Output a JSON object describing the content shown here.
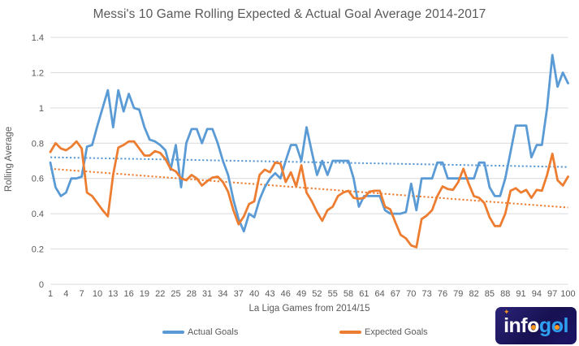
{
  "title": "Messi's 10 Game Rolling Expected & Actual Goal Average 2014-2017",
  "y_axis": {
    "label": "Rolling Average",
    "ticks": [
      "1.4",
      "1.2",
      "1",
      "0.8",
      "0.6",
      "0.4",
      "0.2",
      "0"
    ]
  },
  "x_axis": {
    "label": "La Liga Games from 2014/15",
    "ticks": [
      1,
      4,
      7,
      10,
      13,
      16,
      19,
      22,
      25,
      28,
      31,
      34,
      37,
      40,
      43,
      46,
      49,
      52,
      55,
      58,
      61,
      64,
      67,
      70,
      73,
      76,
      79,
      82,
      85,
      88,
      91,
      94,
      97,
      100
    ]
  },
  "legend": {
    "actual_label": "Actual Goals",
    "expected_label": "Expected Goals"
  },
  "colors": {
    "actual": "#5B9BD5",
    "expected": "#ED7D31",
    "gridline": "#D9D9D9",
    "text": "#595959",
    "logo_bg": "#171152",
    "logo_accent": "#F7941D",
    "logo_blue": "#2f9ff0"
  },
  "logo": {
    "inf": "inf",
    "o1": "o",
    "g": "g",
    "o2": "o",
    "l": "l",
    "sparkle": "✦"
  },
  "chart_data": {
    "type": "line",
    "title": "Messi's 10 Game Rolling Expected & Actual Goal Average 2014-2017",
    "xlabel": "La Liga Games from 2014/15",
    "ylabel": "Rolling Average",
    "x_range": [
      1,
      100
    ],
    "x_note": "x = La Liga game number 1..100; values arrays are indexed per game",
    "ylim": [
      0,
      1.4
    ],
    "grid": true,
    "legend_position": "bottom",
    "series": [
      {
        "name": "Actual Goals",
        "color": "#5B9BD5",
        "style": "solid",
        "values": [
          0.69,
          0.55,
          0.5,
          0.52,
          0.6,
          0.6,
          0.61,
          0.78,
          0.79,
          0.9,
          1.0,
          1.1,
          0.89,
          1.1,
          0.98,
          1.08,
          1.0,
          0.99,
          0.89,
          0.82,
          0.81,
          0.79,
          0.76,
          0.65,
          0.79,
          0.55,
          0.8,
          0.88,
          0.88,
          0.8,
          0.88,
          0.88,
          0.8,
          0.7,
          0.62,
          0.48,
          0.37,
          0.3,
          0.4,
          0.38,
          0.48,
          0.55,
          0.6,
          0.63,
          0.6,
          0.7,
          0.79,
          0.79,
          0.7,
          0.89,
          0.75,
          0.62,
          0.7,
          0.62,
          0.7,
          0.7,
          0.7,
          0.7,
          0.6,
          0.44,
          0.5,
          0.5,
          0.5,
          0.5,
          0.42,
          0.4,
          0.4,
          0.4,
          0.41,
          0.57,
          0.42,
          0.6,
          0.6,
          0.6,
          0.69,
          0.69,
          0.6,
          0.6,
          0.6,
          0.6,
          0.6,
          0.6,
          0.69,
          0.69,
          0.55,
          0.5,
          0.5,
          0.6,
          0.75,
          0.9,
          0.9,
          0.9,
          0.72,
          0.79,
          0.79,
          1.0,
          1.3,
          1.12,
          1.2,
          1.14
        ]
      },
      {
        "name": "Expected Goals",
        "color": "#ED7D31",
        "style": "solid",
        "values": [
          0.75,
          0.8,
          0.77,
          0.76,
          0.78,
          0.81,
          0.77,
          0.52,
          0.5,
          0.46,
          0.42,
          0.385,
          0.62,
          0.775,
          0.79,
          0.81,
          0.81,
          0.77,
          0.73,
          0.73,
          0.755,
          0.745,
          0.71,
          0.655,
          0.64,
          0.6,
          0.59,
          0.62,
          0.6,
          0.56,
          0.585,
          0.605,
          0.61,
          0.58,
          0.525,
          0.42,
          0.34,
          0.385,
          0.455,
          0.47,
          0.62,
          0.65,
          0.635,
          0.69,
          0.685,
          0.58,
          0.635,
          0.555,
          0.675,
          0.52,
          0.47,
          0.41,
          0.36,
          0.42,
          0.44,
          0.5,
          0.52,
          0.53,
          0.49,
          0.485,
          0.49,
          0.525,
          0.53,
          0.53,
          0.44,
          0.425,
          0.35,
          0.28,
          0.26,
          0.22,
          0.21,
          0.37,
          0.39,
          0.42,
          0.5,
          0.555,
          0.54,
          0.535,
          0.58,
          0.655,
          0.57,
          0.5,
          0.49,
          0.46,
          0.38,
          0.33,
          0.33,
          0.4,
          0.53,
          0.545,
          0.52,
          0.535,
          0.49,
          0.535,
          0.53,
          0.62,
          0.74,
          0.59,
          0.56,
          0.61
        ]
      }
    ],
    "trendlines": [
      {
        "name": "Actual Goals trend",
        "color": "#5B9BD5",
        "style": "dotted",
        "start": 0.72,
        "end": 0.665
      },
      {
        "name": "Expected Goals trend",
        "color": "#ED7D31",
        "style": "dotted",
        "start": 0.655,
        "end": 0.435
      }
    ]
  }
}
